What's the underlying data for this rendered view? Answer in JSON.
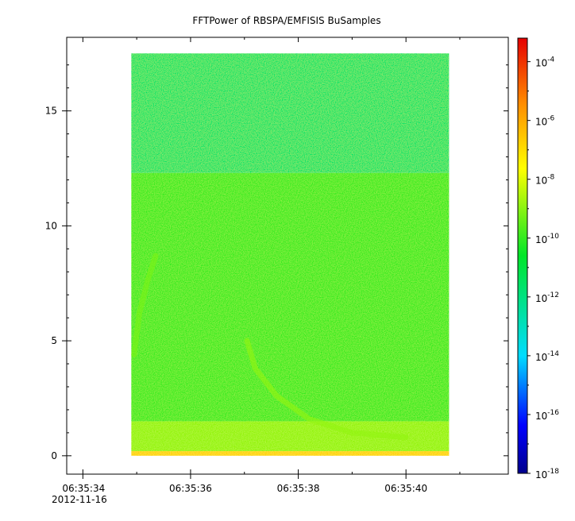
{
  "chart_data": {
    "type": "heatmap",
    "title": "FFTPower of RBSPA/EMFISIS  BuSamples",
    "x_axis": {
      "epoch_date": "2012-11-16",
      "range_seconds": [
        33.7,
        41.9
      ],
      "ticks": [
        {
          "value": 34,
          "label": "06:35:34"
        },
        {
          "value": 36,
          "label": "06:35:36"
        },
        {
          "value": 38,
          "label": "06:35:38"
        },
        {
          "value": 40,
          "label": "06:35:40"
        }
      ],
      "minor_ticks": [
        35,
        37,
        39,
        41
      ]
    },
    "y_axis": {
      "range": [
        -0.8,
        18.2
      ],
      "ticks": [
        {
          "value": 0,
          "label": "0"
        },
        {
          "value": 5,
          "label": "5"
        },
        {
          "value": 10,
          "label": "10"
        },
        {
          "value": 15,
          "label": "15"
        }
      ]
    },
    "colorbar": {
      "scale": "log",
      "range_exponent": [
        -18,
        -3.2
      ],
      "ticks": [
        {
          "base": "10",
          "exponent": "-4",
          "value": -4
        },
        {
          "base": "10",
          "exponent": "-6",
          "value": -6
        },
        {
          "base": "10",
          "exponent": "-8",
          "value": -8
        },
        {
          "base": "10",
          "exponent": "-10",
          "value": -10
        },
        {
          "base": "10",
          "exponent": "-12",
          "value": -12
        },
        {
          "base": "10",
          "exponent": "-14",
          "value": -14
        },
        {
          "base": "10",
          "exponent": "-16",
          "value": -16
        },
        {
          "base": "10",
          "exponent": "-18",
          "value": -18
        }
      ],
      "colormap": "rainbow"
    },
    "spectrogram": {
      "x_extent": [
        34.9,
        40.8
      ],
      "y_extent": [
        0,
        17.5
      ],
      "background_levels": [
        {
          "y_from": 12.3,
          "y_to": 17.5,
          "log_power": -11.6
        },
        {
          "y_from": 1.5,
          "y_to": 12.3,
          "log_power": -10.0
        },
        {
          "y_from": 0.2,
          "y_to": 1.5,
          "log_power": -8.9
        },
        {
          "y_from": 0.0,
          "y_to": 0.2,
          "log_power": -6.8
        }
      ],
      "features": [
        {
          "name": "chorus-element-1",
          "points": [
            [
              34.95,
              4.4
            ],
            [
              35.05,
              6.2
            ],
            [
              35.2,
              7.6
            ],
            [
              35.35,
              8.7
            ]
          ],
          "log_power": -9.2
        },
        {
          "name": "chorus-element-2",
          "points": [
            [
              37.05,
              5.0
            ],
            [
              37.2,
              3.8
            ],
            [
              37.6,
              2.6
            ],
            [
              38.2,
              1.6
            ],
            [
              39.0,
              1.0
            ],
            [
              40.0,
              0.8
            ]
          ],
          "log_power": -8.9
        }
      ]
    }
  }
}
